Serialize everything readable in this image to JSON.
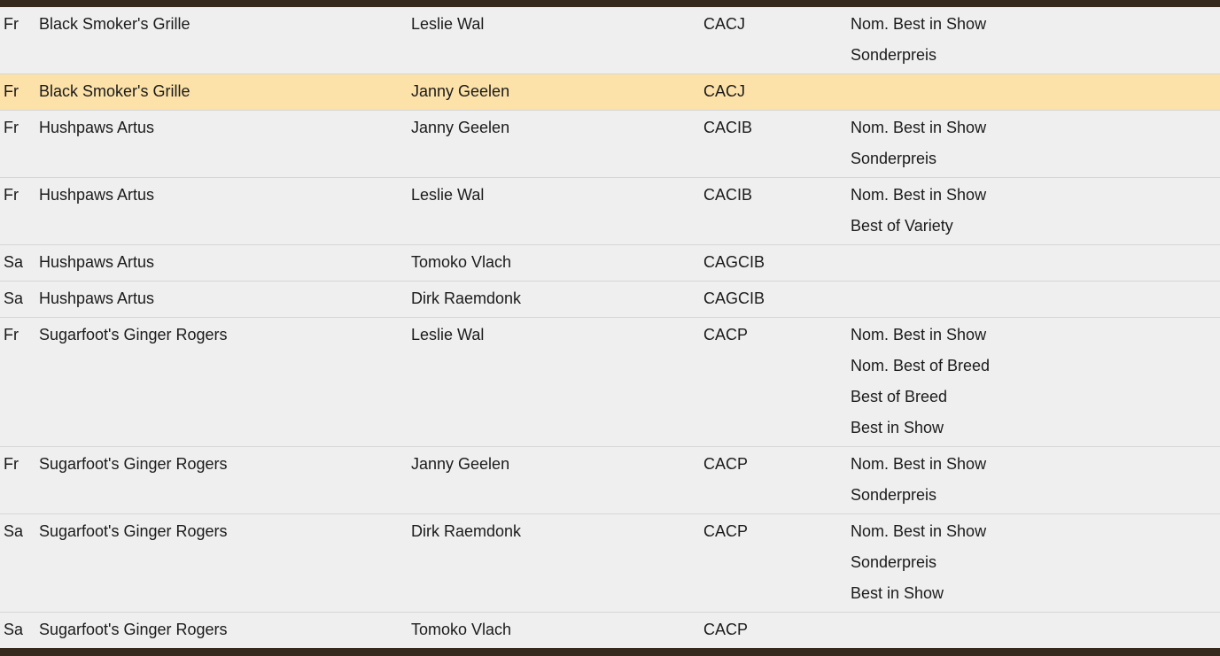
{
  "colors": {
    "frame_bar": "#362a1e",
    "row_background": "#efefef",
    "highlight_row": "#fce1a8",
    "separator": "#d6d6d6",
    "text": "#1b1b1b"
  },
  "table": {
    "rows": [
      {
        "day": "Fr",
        "cat": "Black Smoker's Grille",
        "judge": "Leslie Wal",
        "certificate": "CACJ",
        "awards": [
          "Nom. Best in Show",
          "Sonderpreis"
        ],
        "highlighted": false
      },
      {
        "day": "Fr",
        "cat": "Black Smoker's Grille",
        "judge": "Janny Geelen",
        "certificate": "CACJ",
        "awards": [],
        "highlighted": true
      },
      {
        "day": "Fr",
        "cat": "Hushpaws Artus",
        "judge": "Janny Geelen",
        "certificate": "CACIB",
        "awards": [
          "Nom. Best in Show",
          "Sonderpreis"
        ],
        "highlighted": false
      },
      {
        "day": "Fr",
        "cat": "Hushpaws Artus",
        "judge": "Leslie Wal",
        "certificate": "CACIB",
        "awards": [
          "Nom. Best in Show",
          "Best of Variety"
        ],
        "highlighted": false
      },
      {
        "day": "Sa",
        "cat": "Hushpaws Artus",
        "judge": "Tomoko Vlach",
        "certificate": "CAGCIB",
        "awards": [],
        "highlighted": false
      },
      {
        "day": "Sa",
        "cat": "Hushpaws Artus",
        "judge": "Dirk Raemdonk",
        "certificate": "CAGCIB",
        "awards": [],
        "highlighted": false
      },
      {
        "day": "Fr",
        "cat": "Sugarfoot's Ginger Rogers",
        "judge": "Leslie Wal",
        "certificate": "CACP",
        "awards": [
          "Nom. Best in Show",
          "Nom. Best of Breed",
          "Best of Breed",
          "Best in Show"
        ],
        "highlighted": false
      },
      {
        "day": "Fr",
        "cat": "Sugarfoot's Ginger Rogers",
        "judge": "Janny Geelen",
        "certificate": "CACP",
        "awards": [
          "Nom. Best in Show",
          "Sonderpreis"
        ],
        "highlighted": false
      },
      {
        "day": "Sa",
        "cat": "Sugarfoot's Ginger Rogers",
        "judge": "Dirk Raemdonk",
        "certificate": "CACP",
        "awards": [
          "Nom. Best in Show",
          "Sonderpreis",
          "Best in Show"
        ],
        "highlighted": false
      },
      {
        "day": "Sa",
        "cat": "Sugarfoot's Ginger Rogers",
        "judge": "Tomoko Vlach",
        "certificate": "CACP",
        "awards": [],
        "highlighted": false
      }
    ]
  }
}
